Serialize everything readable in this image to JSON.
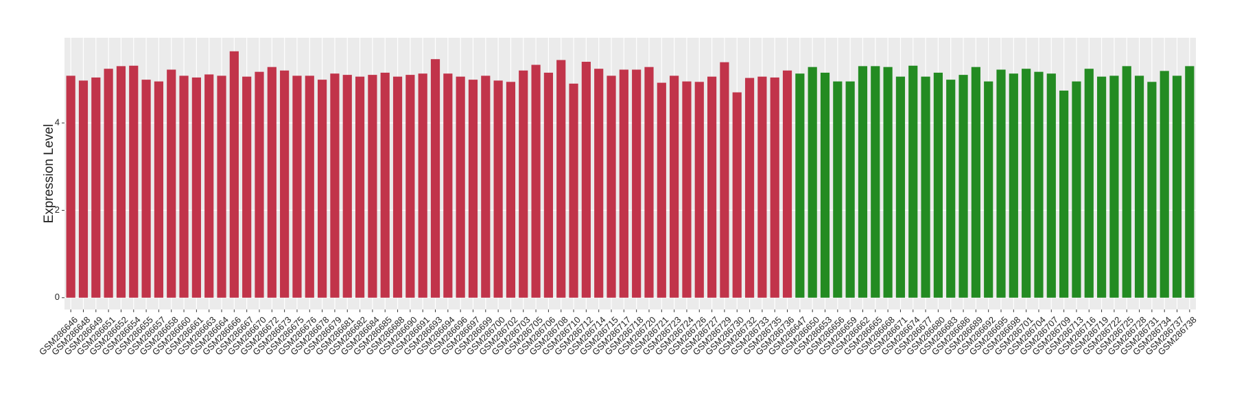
{
  "chart_data": {
    "type": "bar",
    "y_label": "Expression Level",
    "categories": [
      "GSM286646",
      "GSM286648",
      "GSM286649",
      "GSM286651",
      "GSM286652",
      "GSM286654",
      "GSM286655",
      "GSM286657",
      "GSM286658",
      "GSM286660",
      "GSM286661",
      "GSM286663",
      "GSM286664",
      "GSM286666",
      "GSM286667",
      "GSM286670",
      "GSM286672",
      "GSM286673",
      "GSM286675",
      "GSM286676",
      "GSM286678",
      "GSM286679",
      "GSM286681",
      "GSM286682",
      "GSM286684",
      "GSM286685",
      "GSM286688",
      "GSM286690",
      "GSM286691",
      "GSM286693",
      "GSM286694",
      "GSM286696",
      "GSM286697",
      "GSM286699",
      "GSM286700",
      "GSM286702",
      "GSM286703",
      "GSM286705",
      "GSM286706",
      "GSM286708",
      "GSM286710",
      "GSM286712",
      "GSM286714",
      "GSM286715",
      "GSM286717",
      "GSM286718",
      "GSM286720",
      "GSM286721",
      "GSM286723",
      "GSM286724",
      "GSM286726",
      "GSM286727",
      "GSM286729",
      "GSM286730",
      "GSM286732",
      "GSM286733",
      "GSM286735",
      "GSM286736",
      "GSM286647",
      "GSM286650",
      "GSM286653",
      "GSM286656",
      "GSM286659",
      "GSM286662",
      "GSM286665",
      "GSM286668",
      "GSM286671",
      "GSM286674",
      "GSM286677",
      "GSM286680",
      "GSM286683",
      "GSM286686",
      "GSM286689",
      "GSM286692",
      "GSM286695",
      "GSM286698",
      "GSM286701",
      "GSM286704",
      "GSM286707",
      "GSM286709",
      "GSM286713",
      "GSM286716",
      "GSM286719",
      "GSM286722",
      "GSM286725",
      "GSM286728",
      "GSM286731",
      "GSM286734",
      "GSM286737",
      "GSM286738"
    ],
    "values": [
      5.08,
      4.97,
      5.04,
      5.24,
      5.3,
      5.31,
      4.99,
      4.95,
      5.22,
      5.08,
      5.04,
      5.11,
      5.08,
      5.64,
      5.06,
      5.17,
      5.28,
      5.2,
      5.08,
      5.08,
      4.99,
      5.13,
      5.1,
      5.06,
      5.1,
      5.15,
      5.06,
      5.1,
      5.13,
      5.46,
      5.13,
      5.06,
      4.99,
      5.08,
      4.97,
      4.94,
      5.2,
      5.33,
      5.15,
      5.44,
      4.9,
      5.4,
      5.24,
      5.08,
      5.22,
      5.22,
      5.28,
      4.92,
      5.08,
      4.95,
      4.94,
      5.06,
      5.39,
      4.7,
      5.03,
      5.06,
      5.04,
      5.2,
      5.13,
      5.28,
      5.15,
      4.95,
      4.95,
      5.3,
      5.3,
      5.28,
      5.06,
      5.31,
      5.06,
      5.15,
      4.99,
      5.1,
      5.28,
      4.95,
      5.22,
      5.13,
      5.24,
      5.17,
      5.13,
      4.74,
      4.95,
      5.24,
      5.06,
      5.08,
      5.3,
      5.08,
      4.94,
      5.19,
      5.08,
      5.3
    ],
    "colors": [
      "#c1344a",
      "#c1344a",
      "#c1344a",
      "#c1344a",
      "#c1344a",
      "#c1344a",
      "#c1344a",
      "#c1344a",
      "#c1344a",
      "#c1344a",
      "#c1344a",
      "#c1344a",
      "#c1344a",
      "#c1344a",
      "#c1344a",
      "#c1344a",
      "#c1344a",
      "#c1344a",
      "#c1344a",
      "#c1344a",
      "#c1344a",
      "#c1344a",
      "#c1344a",
      "#c1344a",
      "#c1344a",
      "#c1344a",
      "#c1344a",
      "#c1344a",
      "#c1344a",
      "#c1344a",
      "#c1344a",
      "#c1344a",
      "#c1344a",
      "#c1344a",
      "#c1344a",
      "#c1344a",
      "#c1344a",
      "#c1344a",
      "#c1344a",
      "#c1344a",
      "#c1344a",
      "#c1344a",
      "#c1344a",
      "#c1344a",
      "#c1344a",
      "#c1344a",
      "#c1344a",
      "#c1344a",
      "#c1344a",
      "#c1344a",
      "#c1344a",
      "#c1344a",
      "#c1344a",
      "#c1344a",
      "#c1344a",
      "#c1344a",
      "#c1344a",
      "#c1344a",
      "#238b22",
      "#238b22",
      "#238b22",
      "#238b22",
      "#238b22",
      "#238b22",
      "#238b22",
      "#238b22",
      "#238b22",
      "#238b22",
      "#238b22",
      "#238b22",
      "#238b22",
      "#238b22",
      "#238b22",
      "#238b22",
      "#238b22",
      "#238b22",
      "#238b22",
      "#238b22",
      "#238b22",
      "#238b22",
      "#238b22",
      "#238b22",
      "#238b22",
      "#238b22",
      "#238b22",
      "#238b22",
      "#238b22",
      "#238b22",
      "#238b22",
      "#238b22"
    ],
    "ylim": [
      -0.27,
      5.95
    ],
    "yticks": [
      0,
      2,
      4
    ],
    "grid": true
  }
}
